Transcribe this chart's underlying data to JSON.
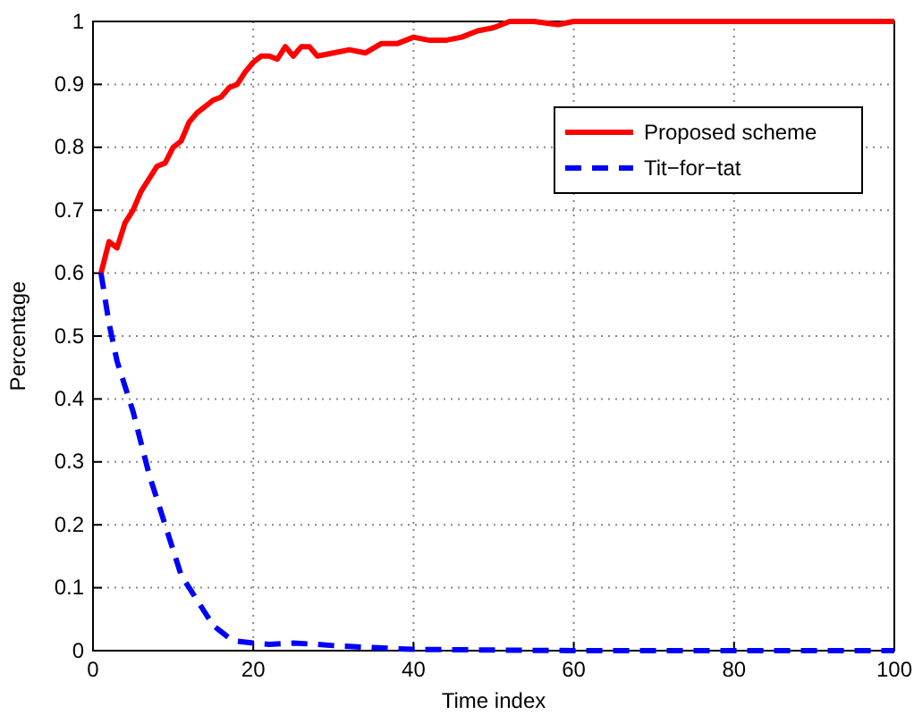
{
  "chart_data": {
    "type": "line",
    "xlabel": "Time index",
    "ylabel": "Percentage",
    "xlim": [
      0,
      100
    ],
    "ylim": [
      0,
      1
    ],
    "xticks": [
      0,
      20,
      40,
      60,
      80,
      100
    ],
    "yticks": [
      0,
      0.1,
      0.2,
      0.3,
      0.4,
      0.5,
      0.6,
      0.7,
      0.8,
      0.9,
      1
    ],
    "grid": true,
    "legend": "top right",
    "series": [
      {
        "name": "Proposed scheme",
        "color": "#ff0000",
        "line_style": "solid",
        "x": [
          1,
          2,
          3,
          4,
          5,
          6,
          7,
          8,
          9,
          10,
          11,
          12,
          13,
          14,
          15,
          16,
          17,
          18,
          19,
          20,
          21,
          22,
          23,
          24,
          25,
          26,
          27,
          28,
          30,
          32,
          34,
          36,
          38,
          40,
          42,
          44,
          46,
          48,
          50,
          52,
          55,
          58,
          60,
          100
        ],
        "values": [
          0.6,
          0.65,
          0.64,
          0.68,
          0.7,
          0.73,
          0.75,
          0.77,
          0.775,
          0.8,
          0.81,
          0.84,
          0.855,
          0.865,
          0.875,
          0.88,
          0.895,
          0.9,
          0.92,
          0.935,
          0.945,
          0.945,
          0.94,
          0.96,
          0.945,
          0.96,
          0.96,
          0.945,
          0.95,
          0.955,
          0.95,
          0.965,
          0.965,
          0.975,
          0.97,
          0.97,
          0.975,
          0.985,
          0.99,
          1,
          1,
          0.995,
          1,
          1
        ]
      },
      {
        "name": "Tit−for−tat",
        "color": "#0000ff",
        "line_style": "dashed",
        "x": [
          1,
          2,
          3,
          4,
          5,
          6,
          7,
          8,
          9,
          10,
          11,
          12,
          13,
          14,
          15,
          16,
          17,
          18,
          20,
          22,
          25,
          28,
          30,
          33,
          35,
          38,
          40,
          50,
          60,
          100
        ],
        "values": [
          0.6,
          0.52,
          0.46,
          0.42,
          0.38,
          0.33,
          0.28,
          0.24,
          0.2,
          0.16,
          0.12,
          0.1,
          0.08,
          0.06,
          0.04,
          0.03,
          0.02,
          0.015,
          0.012,
          0.01,
          0.012,
          0.01,
          0.008,
          0.006,
          0.005,
          0.003,
          0.002,
          0.001,
          0,
          0
        ]
      }
    ]
  }
}
